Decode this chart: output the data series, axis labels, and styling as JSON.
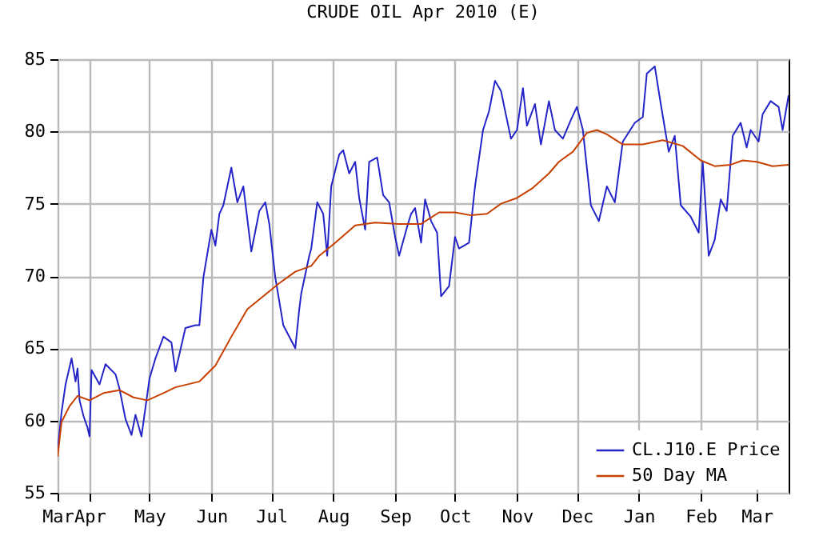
{
  "chart_data": {
    "type": "line",
    "title": "CRUDE OIL Apr 2010 (E)",
    "xlim": [
      "2009-03-16",
      "2010-03-17"
    ],
    "xticks": [
      {
        "value": "2009-03-16",
        "label": "Mar"
      },
      {
        "value": "2009-04-01",
        "label": "Apr"
      },
      {
        "value": "2009-05-01",
        "label": "May"
      },
      {
        "value": "2009-06-01",
        "label": "Jun"
      },
      {
        "value": "2009-07-01",
        "label": "Jul"
      },
      {
        "value": "2009-08-01",
        "label": "Aug"
      },
      {
        "value": "2009-09-01",
        "label": "Sep"
      },
      {
        "value": "2009-10-01",
        "label": "Oct"
      },
      {
        "value": "2009-11-01",
        "label": "Nov"
      },
      {
        "value": "2009-12-01",
        "label": "Dec"
      },
      {
        "value": "2010-01-01",
        "label": "Jan"
      },
      {
        "value": "2010-02-01",
        "label": "Feb"
      },
      {
        "value": "2010-03-01",
        "label": "Mar"
      }
    ],
    "ylim": [
      55,
      85
    ],
    "yticks": [
      55,
      60,
      65,
      70,
      75,
      80,
      85
    ],
    "grid": true,
    "legend": "bottom right",
    "marker": "none",
    "line_style": "solid",
    "series": [
      {
        "name": "CL.J10.E Price",
        "color": "#2424c8",
        "x": [
          "2009-03-16",
          "2009-03-18",
          "2009-03-20",
          "2009-03-23",
          "2009-03-25",
          "2009-03-26",
          "2009-03-27",
          "2009-03-29",
          "2009-03-31",
          "2009-04-01",
          "2009-04-02",
          "2009-04-06",
          "2009-04-09",
          "2009-04-14",
          "2009-04-16",
          "2009-04-19",
          "2009-04-22",
          "2009-04-24",
          "2009-04-27",
          "2009-05-01",
          "2009-05-04",
          "2009-05-08",
          "2009-05-12",
          "2009-05-14",
          "2009-05-19",
          "2009-05-24",
          "2009-05-26",
          "2009-05-28",
          "2009-06-01",
          "2009-06-03",
          "2009-06-05",
          "2009-06-07",
          "2009-06-11",
          "2009-06-14",
          "2009-06-17",
          "2009-06-21",
          "2009-06-25",
          "2009-06-28",
          "2009-06-30",
          "2009-07-03",
          "2009-07-07",
          "2009-07-13",
          "2009-07-15",
          "2009-07-16",
          "2009-07-20",
          "2009-07-21",
          "2009-07-24",
          "2009-07-27",
          "2009-07-29",
          "2009-07-31",
          "2009-08-04",
          "2009-08-06",
          "2009-08-09",
          "2009-08-12",
          "2009-08-14",
          "2009-08-17",
          "2009-08-19",
          "2009-08-23",
          "2009-08-26",
          "2009-08-29",
          "2009-09-01",
          "2009-09-03",
          "2009-09-07",
          "2009-09-09",
          "2009-09-11",
          "2009-09-14",
          "2009-09-16",
          "2009-09-19",
          "2009-09-22",
          "2009-09-24",
          "2009-09-28",
          "2009-10-01",
          "2009-10-03",
          "2009-10-08",
          "2009-10-11",
          "2009-10-15",
          "2009-10-18",
          "2009-10-21",
          "2009-10-24",
          "2009-10-27",
          "2009-10-29",
          "2009-11-01",
          "2009-11-04",
          "2009-11-06",
          "2009-11-10",
          "2009-11-13",
          "2009-11-17",
          "2009-11-20",
          "2009-11-24",
          "2009-11-28",
          "2009-12-01",
          "2009-12-04",
          "2009-12-08",
          "2009-12-12",
          "2009-12-16",
          "2009-12-20",
          "2009-12-24",
          "2009-12-30",
          "2010-01-03",
          "2010-01-05",
          "2010-01-09",
          "2010-01-12",
          "2010-01-16",
          "2010-01-19",
          "2010-01-22",
          "2010-01-27",
          "2010-01-31",
          "2010-02-02",
          "2010-02-05",
          "2010-02-08",
          "2010-02-11",
          "2010-02-14",
          "2010-02-17",
          "2010-02-21",
          "2010-02-24",
          "2010-02-26",
          "2010-03-02",
          "2010-03-04",
          "2010-03-08",
          "2010-03-12",
          "2010-03-14",
          "2010-03-17"
        ],
        "values": [
          57.9,
          60.6,
          62.5,
          64.3,
          62.7,
          63.6,
          61.4,
          60.3,
          59.5,
          58.9,
          63.5,
          62.5,
          63.9,
          63.2,
          62.2,
          60.1,
          59.0,
          60.4,
          58.9,
          62.9,
          64.3,
          65.8,
          65.4,
          63.4,
          66.4,
          66.6,
          66.6,
          69.9,
          73.2,
          72.1,
          74.3,
          74.9,
          77.5,
          75.1,
          76.2,
          71.7,
          74.5,
          75.1,
          73.6,
          69.9,
          66.6,
          65.0,
          67.7,
          68.8,
          71.4,
          71.9,
          75.1,
          74.3,
          71.4,
          76.2,
          78.4,
          78.7,
          77.1,
          77.9,
          75.4,
          73.2,
          77.9,
          78.2,
          75.6,
          75.1,
          72.7,
          71.4,
          73.4,
          74.3,
          74.7,
          72.3,
          75.3,
          73.8,
          73.0,
          68.6,
          69.3,
          72.7,
          71.9,
          72.3,
          76.2,
          80.1,
          81.4,
          83.5,
          82.8,
          80.8,
          79.5,
          80.1,
          83.0,
          80.4,
          81.9,
          79.1,
          82.1,
          80.1,
          79.5,
          80.8,
          81.7,
          80.1,
          74.9,
          73.8,
          76.2,
          75.1,
          79.3,
          80.6,
          81.0,
          84.0,
          84.5,
          81.9,
          78.6,
          79.7,
          74.9,
          74.1,
          73.0,
          77.9,
          71.4,
          72.5,
          75.3,
          74.5,
          79.7,
          80.6,
          78.9,
          80.1,
          79.3,
          81.2,
          82.1,
          81.7,
          80.1,
          82.5
        ]
      },
      {
        "name": "50 Day MA",
        "color": "#c84000",
        "x": [
          "2009-03-16",
          "2009-03-18",
          "2009-03-22",
          "2009-03-26",
          "2009-04-01",
          "2009-04-08",
          "2009-04-16",
          "2009-04-23",
          "2009-04-30",
          "2009-05-08",
          "2009-05-14",
          "2009-05-26",
          "2009-06-03",
          "2009-06-11",
          "2009-06-19",
          "2009-06-27",
          "2009-07-05",
          "2009-07-13",
          "2009-07-21",
          "2009-07-25",
          "2009-08-02",
          "2009-08-12",
          "2009-08-22",
          "2009-09-03",
          "2009-09-14",
          "2009-09-23",
          "2009-10-01",
          "2009-10-09",
          "2009-10-17",
          "2009-10-24",
          "2009-11-01",
          "2009-11-09",
          "2009-11-17",
          "2009-11-22",
          "2009-11-29",
          "2009-12-06",
          "2009-12-11",
          "2009-12-16",
          "2009-12-24",
          "2010-01-03",
          "2010-01-13",
          "2010-01-23",
          "2010-02-01",
          "2010-02-08",
          "2010-02-16",
          "2010-02-22",
          "2010-03-01",
          "2010-03-09",
          "2010-03-17"
        ],
        "values": [
          57.5,
          59.9,
          61.0,
          61.7,
          61.4,
          61.9,
          62.1,
          61.6,
          61.4,
          61.9,
          62.3,
          62.7,
          63.8,
          65.8,
          67.7,
          68.6,
          69.5,
          70.3,
          70.7,
          71.4,
          72.3,
          73.5,
          73.7,
          73.6,
          73.6,
          74.4,
          74.4,
          74.2,
          74.3,
          75.0,
          75.4,
          76.1,
          77.1,
          77.9,
          78.6,
          79.9,
          80.1,
          79.8,
          79.1,
          79.1,
          79.4,
          79.0,
          78.0,
          77.6,
          77.7,
          78.0,
          77.9,
          77.6,
          77.7
        ]
      }
    ]
  }
}
